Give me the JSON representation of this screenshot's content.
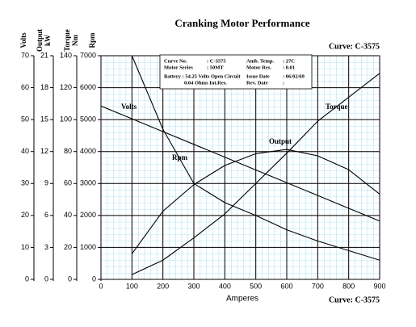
{
  "chart_data": {
    "type": "line",
    "title": "Cranking Motor Performance",
    "curve_label": "Curve: C-3575",
    "x_label": "Amperes",
    "xlim": [
      0,
      900
    ],
    "xticks": [
      0,
      100,
      200,
      300,
      400,
      500,
      600,
      700,
      800,
      900
    ],
    "x": [
      0,
      100,
      200,
      300,
      400,
      500,
      600,
      700,
      800,
      900
    ],
    "grid": true,
    "y_axes": [
      {
        "label": [
          "Volts"
        ],
        "ylim": [
          0,
          70
        ],
        "yticks": [
          0,
          10,
          20,
          30,
          40,
          50,
          60,
          70
        ]
      },
      {
        "label": [
          "Output",
          "kW"
        ],
        "ylim": [
          0,
          21
        ],
        "yticks": [
          0,
          3,
          6,
          9,
          12,
          15,
          18,
          21
        ]
      },
      {
        "label": [
          "Torque",
          "Nm"
        ],
        "ylim": [
          0,
          140
        ],
        "yticks": [
          0,
          20,
          40,
          60,
          80,
          100,
          120,
          140
        ]
      },
      {
        "label": [
          "Rpm"
        ],
        "ylim": [
          0,
          7000
        ],
        "yticks": [
          0,
          1000,
          2000,
          3000,
          4000,
          5000,
          6000,
          7000
        ]
      }
    ],
    "series": [
      {
        "name": "Volts",
        "color": "#000000",
        "axis": 0,
        "values": [
          54.25,
          50.25,
          46.25,
          42.25,
          38.25,
          34.25,
          30.25,
          26.25,
          22.25,
          18.25
        ]
      },
      {
        "name": "Rpm",
        "color": "#000000",
        "axis": 3,
        "values": [
          null,
          7000,
          4700,
          3000,
          2400,
          2000,
          1550,
          1200,
          900,
          600
        ]
      },
      {
        "name": "Output",
        "color": "#000000",
        "axis": 1,
        "values": [
          null,
          2.4,
          6.4,
          8.9,
          10.7,
          11.8,
          12.2,
          11.6,
          10.3,
          8.0
        ]
      },
      {
        "name": "Torque",
        "color": "#000000",
        "axis": 2,
        "values": [
          null,
          3,
          12,
          26,
          41,
          60,
          79,
          99,
          114,
          129
        ]
      }
    ],
    "info_box": {
      "rows": [
        [
          "Curve No.",
          ": C-3575",
          "Amb. Temp.",
          ": 27C"
        ],
        [
          "Motor Series",
          ": 50MT",
          "Motor Res.",
          ": 0.01"
        ],
        [
          "Battery : 54.25 Volts Open Circuit",
          "Issue Date",
          ": 06/02/69"
        ],
        [
          "0.04 Ohms Int.Res.",
          "Rev. Date",
          ":"
        ]
      ]
    }
  }
}
